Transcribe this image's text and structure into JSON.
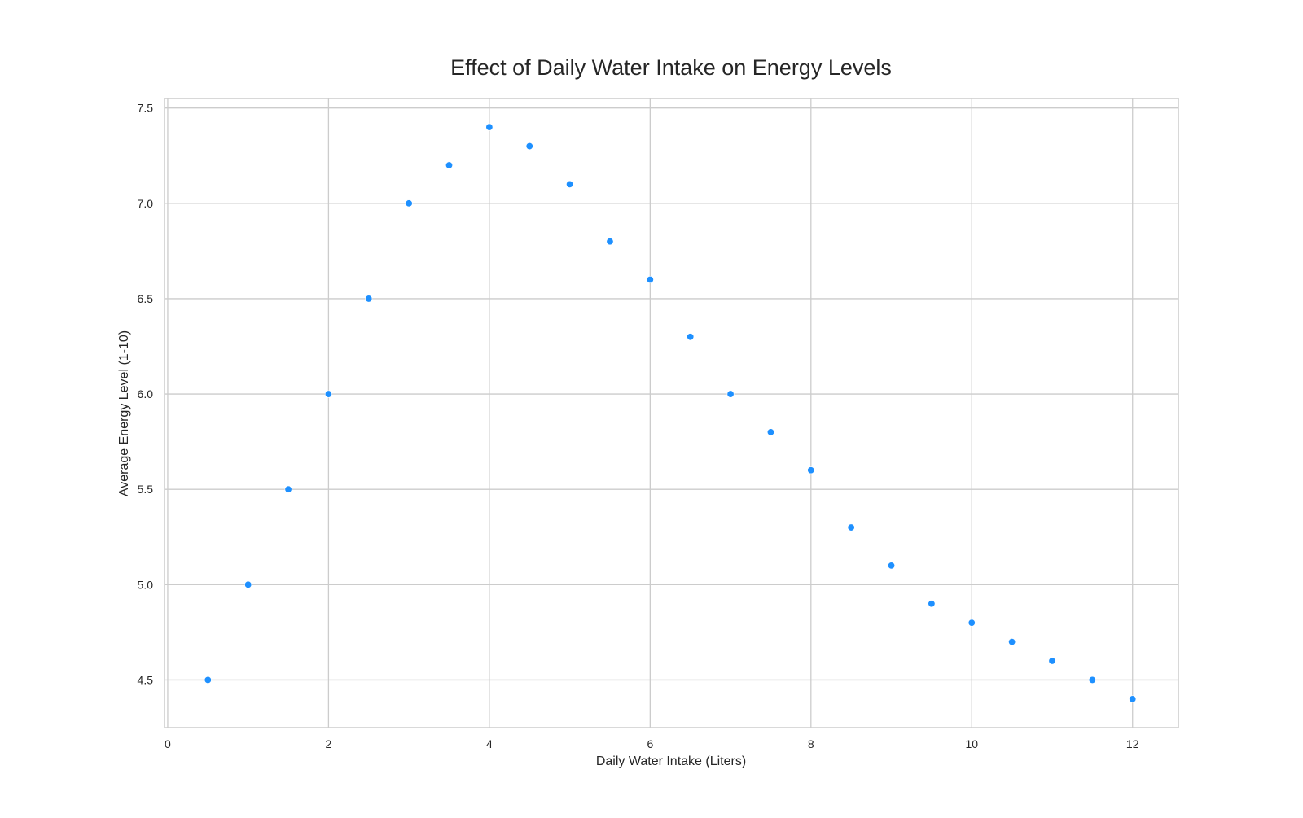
{
  "chart_data": {
    "type": "scatter",
    "title": "Effect of Daily Water Intake on Energy Levels",
    "xlabel": "Daily Water Intake (Liters)",
    "ylabel": "Average Energy Level (1-10)",
    "xlim": [
      -0.04,
      12.57
    ],
    "ylim": [
      4.25,
      7.55
    ],
    "x_ticks": [
      0,
      2,
      4,
      6,
      8,
      10,
      12
    ],
    "y_ticks": [
      4.5,
      5.0,
      5.5,
      6.0,
      6.5,
      7.0,
      7.5
    ],
    "x_tick_labels": [
      "0",
      "2",
      "4",
      "6",
      "8",
      "10",
      "12"
    ],
    "y_tick_labels": [
      "4.5",
      "5.0",
      "5.5",
      "6.0",
      "6.5",
      "7.0",
      "7.5"
    ],
    "grid": true,
    "point_color": "#1e90ff",
    "grid_color": "#cccccc",
    "frame_color": "#cccccc",
    "series": [
      {
        "x": [
          0.5,
          1.0,
          1.5,
          2.0,
          2.5,
          3.0,
          3.5,
          4.0,
          4.5,
          5.0,
          5.5,
          6.0,
          6.5,
          7.0,
          7.5,
          8.0,
          8.5,
          9.0,
          9.5,
          10.0,
          10.5,
          11.0,
          11.5,
          12.0
        ],
        "y": [
          4.5,
          5.0,
          5.5,
          6.0,
          6.5,
          7.0,
          7.2,
          7.4,
          7.3,
          7.1,
          6.8,
          6.6,
          6.3,
          6.0,
          5.8,
          5.6,
          5.3,
          5.1,
          4.9,
          4.8,
          4.7,
          4.6,
          4.5,
          4.4
        ]
      }
    ]
  }
}
